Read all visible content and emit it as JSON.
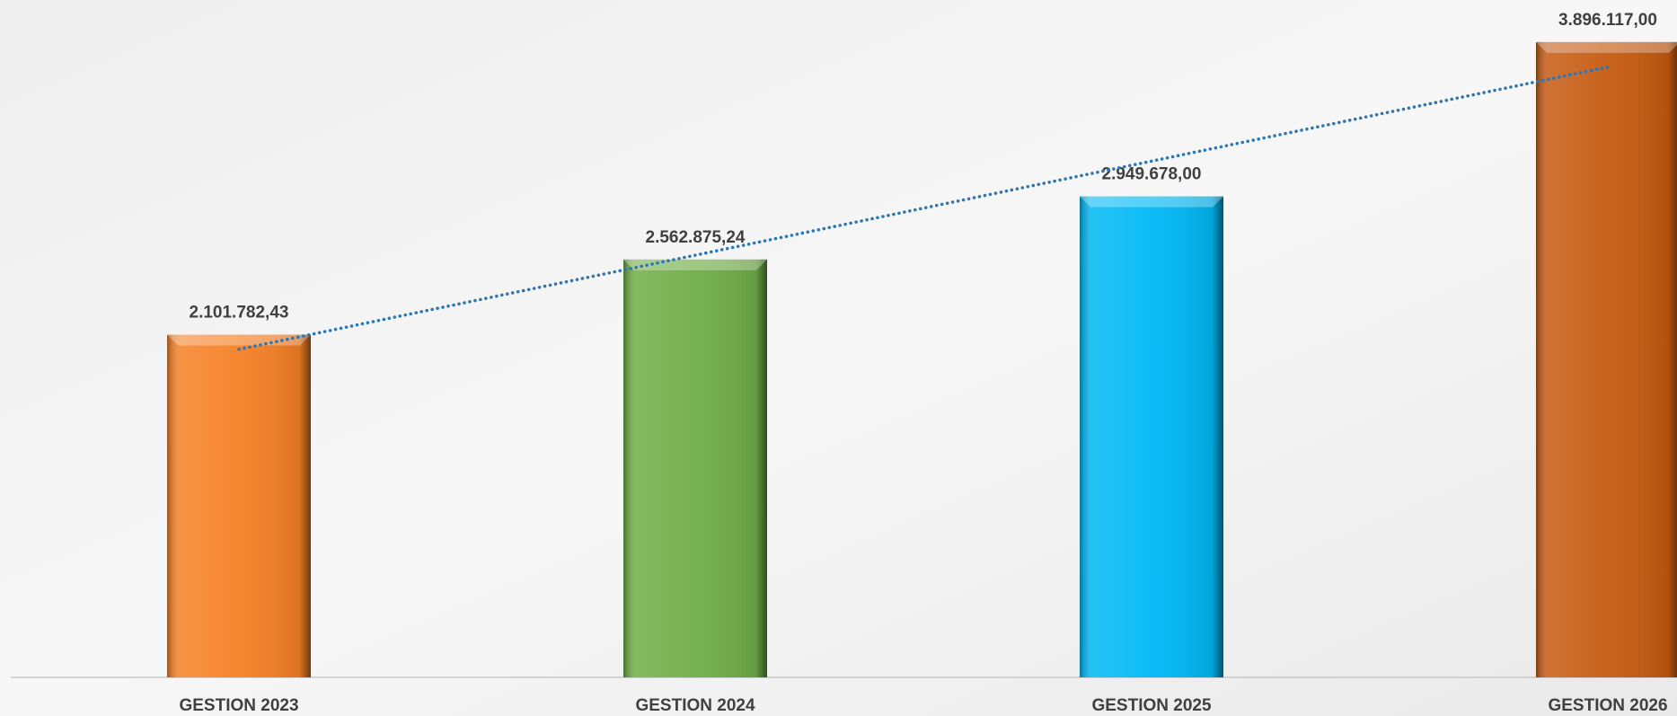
{
  "chart_data": {
    "type": "bar",
    "categories": [
      "GESTION 2023",
      "GESTION 2024",
      "GESTION 2025",
      "GESTION 2026"
    ],
    "values": [
      2101782.43,
      2562875.24,
      2949678.0,
      3896117.0
    ],
    "value_labels": [
      "2.101.782,43",
      "2.562.875,24",
      "2.949.678,00",
      "3.896.117,00"
    ],
    "colors": [
      "#f58025",
      "#70ad47",
      "#00b8f5",
      "#c55a11"
    ],
    "ylim": [
      0,
      4000000
    ],
    "trendline": {
      "type": "linear",
      "color": "#2e75b6",
      "style": "dotted"
    }
  }
}
